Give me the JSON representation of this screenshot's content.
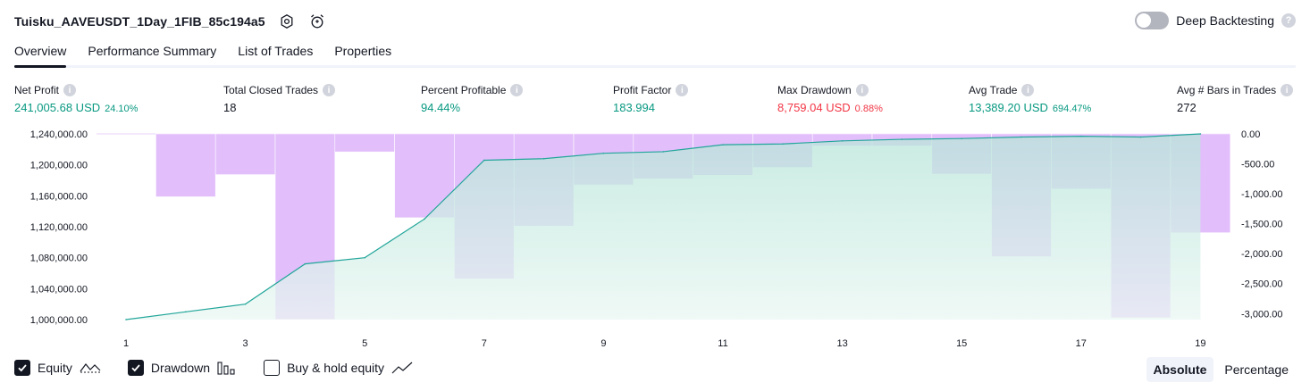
{
  "header": {
    "title": "Tuisku_AAVEUSDT_1Day_1FIB_85c194a5",
    "deep_backtesting_label": "Deep Backtesting",
    "help_glyph": "?"
  },
  "tabs": [
    {
      "label": "Overview",
      "active": true
    },
    {
      "label": "Performance Summary",
      "active": false
    },
    {
      "label": "List of Trades",
      "active": false
    },
    {
      "label": "Properties",
      "active": false
    }
  ],
  "metrics": [
    {
      "label": "Net Profit",
      "value": "241,005.68 USD",
      "sub": "24.10%",
      "color": "green"
    },
    {
      "label": "Total Closed Trades",
      "value": "18",
      "sub": "",
      "color": "dark"
    },
    {
      "label": "Percent Profitable",
      "value": "94.44%",
      "sub": "",
      "color": "green"
    },
    {
      "label": "Profit Factor",
      "value": "183.994",
      "sub": "",
      "color": "green"
    },
    {
      "label": "Max Drawdown",
      "value": "8,759.04 USD",
      "sub": "0.88%",
      "color": "red"
    },
    {
      "label": "Avg Trade",
      "value": "13,389.20 USD",
      "sub": "694.47%",
      "color": "green"
    },
    {
      "label": "Avg # Bars in Trades",
      "value": "272",
      "sub": "",
      "color": "dark"
    }
  ],
  "colors": {
    "equity_line": "#22a69a",
    "equity_fill_top": "#b7e5d9",
    "equity_fill_bottom": "#eaf7f3",
    "drawdown_bar": "#ce93f8",
    "green": "#089981",
    "red": "#f23645"
  },
  "chart_data": {
    "type": "bar+area",
    "x": [
      1,
      2,
      3,
      4,
      5,
      6,
      7,
      8,
      9,
      10,
      11,
      12,
      13,
      14,
      15,
      16,
      17,
      18,
      19
    ],
    "x_tick_labels": [
      "1",
      "3",
      "5",
      "7",
      "9",
      "11",
      "13",
      "15",
      "17",
      "19"
    ],
    "x_ticks": [
      1,
      3,
      5,
      7,
      9,
      11,
      13,
      15,
      17,
      19
    ],
    "left_axis": {
      "ylim": [
        1000000,
        1240000
      ],
      "tick_labels": [
        "1,240,000.00",
        "1,200,000.00",
        "1,160,000.00",
        "1,120,000.00",
        "1,080,000.00",
        "1,040,000.00",
        "1,000,000.00"
      ],
      "ticks": [
        1240000,
        1200000,
        1160000,
        1120000,
        1080000,
        1040000,
        1000000
      ]
    },
    "right_axis": {
      "ylim": [
        -3100,
        0
      ],
      "tick_labels": [
        "0.00",
        "-500.00",
        "-1,000.00",
        "-1,500.00",
        "-2,000.00",
        "-2,500.00",
        "-3,000.00"
      ],
      "ticks": [
        0,
        -500,
        -1000,
        -1500,
        -2000,
        -2500,
        -3000
      ]
    },
    "series": [
      {
        "name": "Equity",
        "type": "area",
        "axis": "left",
        "values": [
          1000000,
          1010000,
          1020000,
          1072000,
          1080000,
          1130000,
          1206000,
          1208000,
          1215000,
          1217000,
          1226000,
          1227000,
          1231000,
          1233000,
          1234000,
          1236000,
          1237000,
          1236000,
          1240000
        ]
      },
      {
        "name": "Drawdown",
        "type": "bar",
        "axis": "right",
        "values": [
          0,
          -1050,
          -680,
          -3100,
          -300,
          -1400,
          -2420,
          -1540,
          -850,
          -750,
          -690,
          -560,
          -200,
          -200,
          -670,
          -2050,
          -920,
          -3070,
          -1650
        ]
      }
    ],
    "grid": false,
    "legend": "bottom-left"
  },
  "legend": {
    "items": [
      {
        "label": "Equity",
        "checked": true,
        "icon": "equity-line-icon"
      },
      {
        "label": "Drawdown",
        "checked": true,
        "icon": "drawdown-bars-icon"
      },
      {
        "label": "Buy & hold equity",
        "checked": false,
        "icon": "buy-hold-line-icon"
      }
    ]
  },
  "modes": [
    {
      "label": "Absolute",
      "active": true
    },
    {
      "label": "Percentage",
      "active": false
    }
  ]
}
